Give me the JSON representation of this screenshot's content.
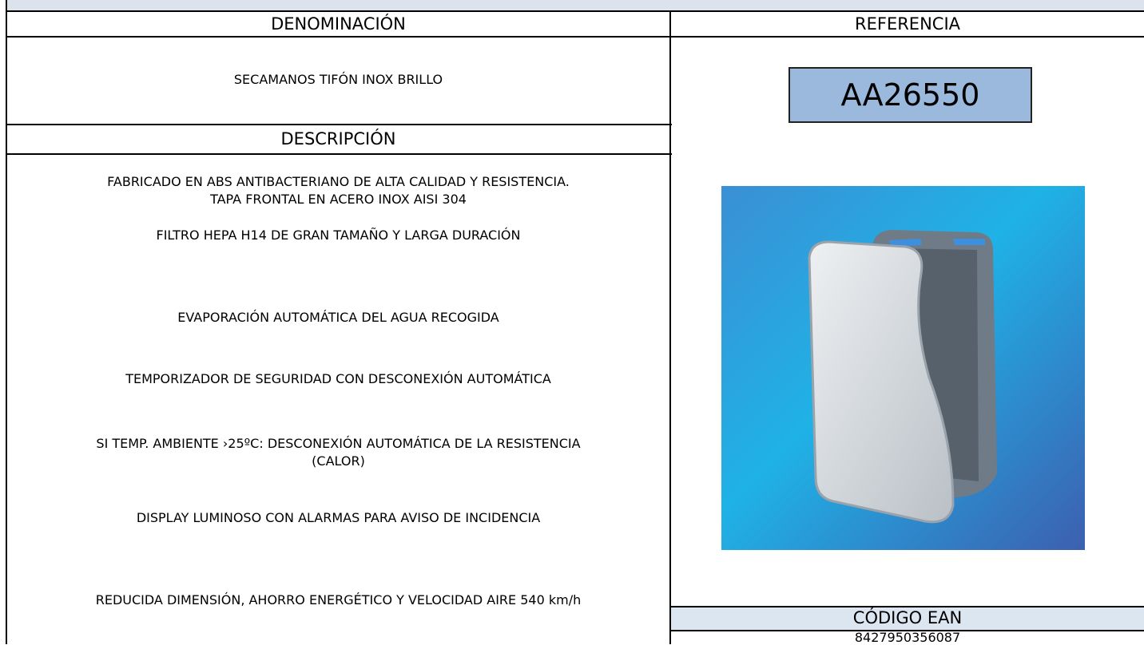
{
  "sheet": {
    "headers": {
      "name": "DENOMINACIÓN",
      "reference": "REFERENCIA",
      "description": "DESCRIPCIÓN",
      "ean": "CÓDIGO EAN"
    },
    "product_name": "SECAMANOS TIFÓN INOX BRILLO",
    "reference": "AA26550",
    "description": [
      "FABRICADO EN ABS ANTIBACTERIANO DE ALTA CALIDAD Y RESISTENCIA.\nTAPA FRONTAL EN ACERO INOX AISI 304",
      "FILTRO HEPA H14 DE GRAN TAMAÑO Y LARGA DURACIÓN",
      "EVAPORACIÓN AUTOMÁTICA DEL AGUA RECOGIDA",
      "TEMPORIZADOR DE SEGURIDAD CON DESCONEXIÓN AUTOMÁTICA",
      "SI TEMP. AMBIENTE ›25ºC: DESCONEXIÓN AUTOMÁTICA DE LA RESISTENCIA\n(CALOR)",
      "DISPLAY LUMINOSO CON ALARMAS PARA AVISO DE INCIDENCIA",
      "REDUCIDA DIMENSIÓN, AHORRO ENERGÉTICO Y VELOCIDAD AIRE 540 km/h"
    ],
    "ean": "8427950356087"
  }
}
